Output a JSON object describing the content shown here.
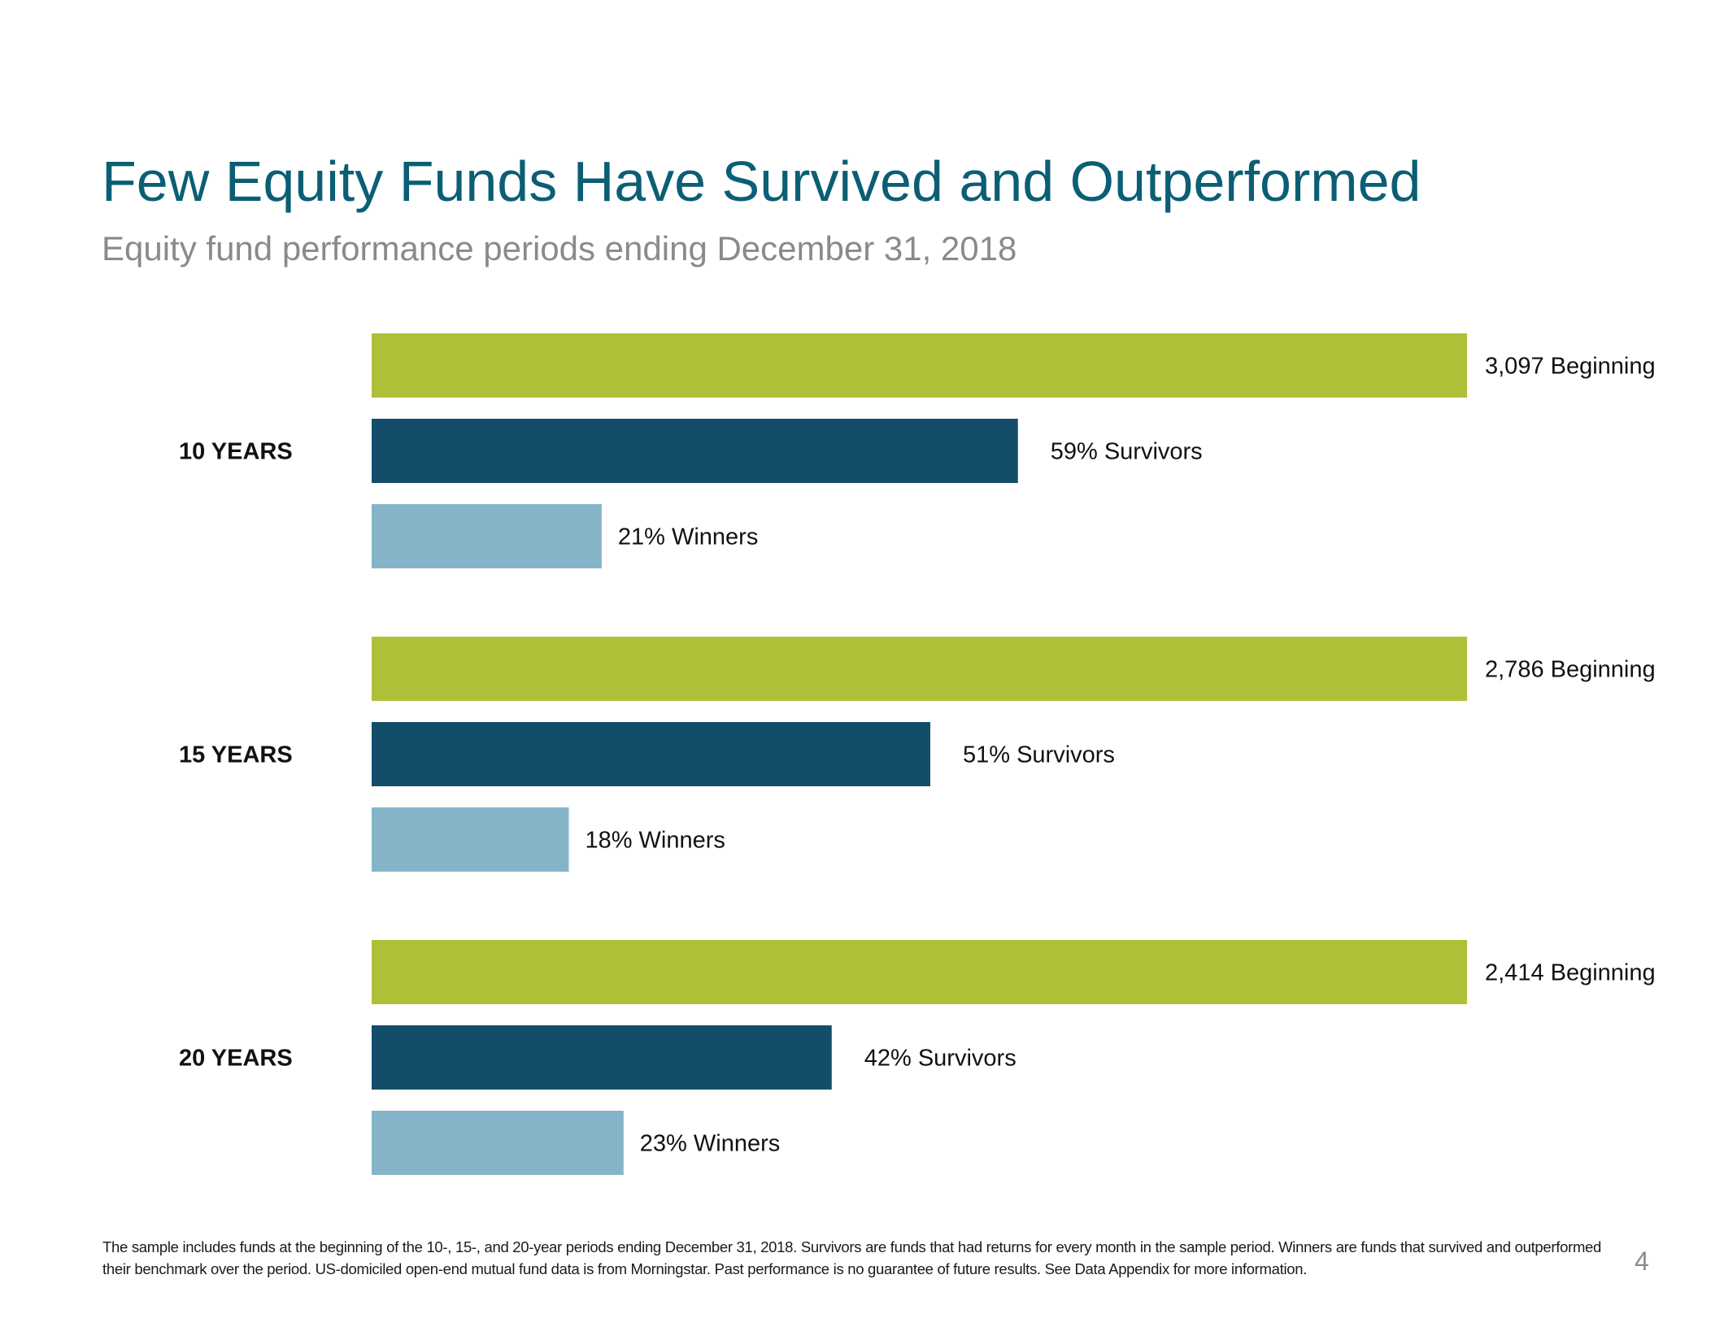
{
  "title": "Few Equity Funds Have Survived and Outperformed",
  "subtitle": "Equity fund performance periods ending December 31, 2018",
  "colors": {
    "beginning": "#afc038",
    "survivors": "#144d69",
    "winners": "#85b4c8",
    "title": "#0b5e74",
    "subtitle": "#8a8a8a"
  },
  "chart_data": {
    "type": "bar",
    "orientation": "horizontal",
    "categories": [
      "10 YEARS",
      "15 YEARS",
      "20 YEARS"
    ],
    "series": [
      {
        "name": "Beginning",
        "unit": "funds",
        "values": [
          3097,
          2786,
          2414
        ],
        "percent_of_beginning": [
          100,
          100,
          100
        ],
        "labels": [
          "3,097 Beginning",
          "2,786 Beginning",
          "2,414 Beginning"
        ]
      },
      {
        "name": "Survivors",
        "unit": "percent",
        "values": [
          59,
          51,
          42
        ],
        "labels": [
          "59% Survivors",
          "51% Survivors",
          "42% Survivors"
        ]
      },
      {
        "name": "Winners",
        "unit": "percent",
        "values": [
          21,
          18,
          23
        ],
        "labels": [
          "21% Winners",
          "18% Winners",
          "23% Winners"
        ]
      }
    ],
    "xlim": [
      0,
      100
    ],
    "grid": false,
    "legend": "none"
  },
  "footnote": "The sample includes funds at the beginning of the 10-, 15-, and 20-year periods ending December 31, 2018. Survivors are funds that had returns for every month in the sample period. Winners are funds that survived and outperformed their benchmark over the period. US-domiciled open-end mutual fund data is from Morningstar. Past performance is no guarantee of future results. See Data Appendix for more information.",
  "page_number": "4"
}
